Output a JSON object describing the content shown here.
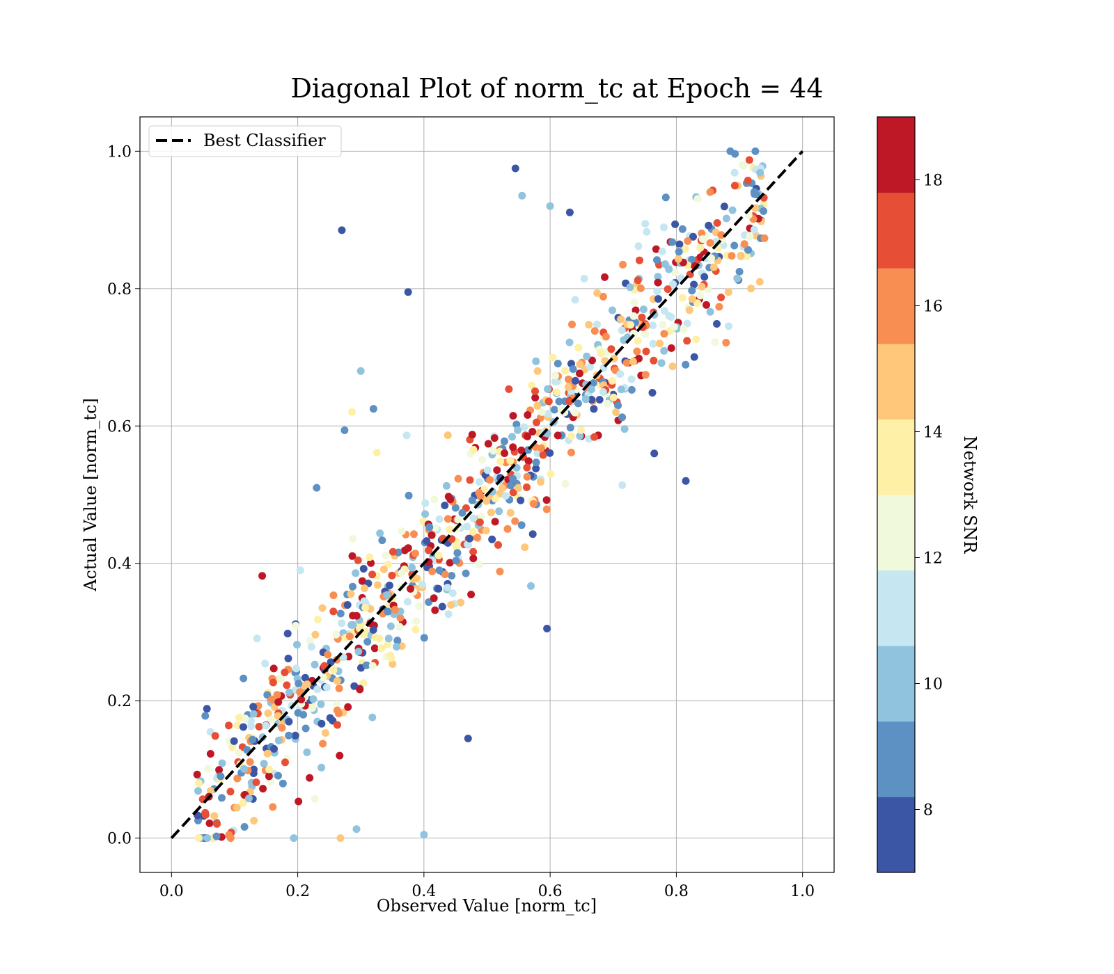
{
  "chart_data": {
    "type": "scatter",
    "title": "Diagonal Plot of norm_tc at Epoch = 44",
    "xlabel": "Observed Value [norm_tc]",
    "ylabel": "Actual Value [norm_tc]",
    "xlim": [
      -0.05,
      1.05
    ],
    "ylim": [
      -0.05,
      1.05
    ],
    "xticks": [
      "0.0",
      "0.2",
      "0.4",
      "0.6",
      "0.8",
      "1.0"
    ],
    "yticks": [
      "0.0",
      "0.2",
      "0.4",
      "0.6",
      "0.8",
      "1.0"
    ],
    "grid": true,
    "legend": {
      "position": "top-left",
      "entries": [
        "Best Classifier"
      ]
    },
    "reference_line": {
      "label": "Best Classifier",
      "x": [
        0,
        1
      ],
      "y": [
        0,
        1
      ],
      "style": "dashed",
      "color": "#000000"
    },
    "colorbar": {
      "label": "Network SNR",
      "range": [
        7,
        19
      ],
      "ticks": [
        "8",
        "10",
        "12",
        "14",
        "16",
        "18"
      ],
      "colormap": [
        "#313695",
        "#4575b4",
        "#74add1",
        "#abd9e9",
        "#e0f3f8",
        "#ffffbf",
        "#fee090",
        "#fdae61",
        "#f46d43",
        "#d73027",
        "#a50026"
      ],
      "bins": 10
    },
    "highlighted_points": [
      {
        "x": 0.27,
        "y": 0.885,
        "snr": 7.5
      },
      {
        "x": 0.375,
        "y": 0.795,
        "snr": 7.5
      },
      {
        "x": 0.545,
        "y": 0.975,
        "snr": 7.5
      },
      {
        "x": 0.6,
        "y": 0.92,
        "snr": 9.5
      },
      {
        "x": 0.3,
        "y": 0.68,
        "snr": 10.5
      },
      {
        "x": 0.595,
        "y": 0.305,
        "snr": 7.5
      },
      {
        "x": 0.4,
        "y": 0.005,
        "snr": 9.5
      },
      {
        "x": 0.815,
        "y": 0.52,
        "snr": 7.5
      },
      {
        "x": 0.765,
        "y": 0.56,
        "snr": 7.5
      },
      {
        "x": 0.47,
        "y": 0.145,
        "snr": 7.5
      },
      {
        "x": 0.23,
        "y": 0.51,
        "snr": 8.5
      },
      {
        "x": 0.32,
        "y": 0.625,
        "snr": 8.5
      }
    ],
    "bulk_scatter": {
      "description": "About 1000 additional points scattered around y = x; estimated, not individually readable",
      "count_estimate": 1000,
      "pattern": "y ≈ x with spread ~0.06, clipped to [0, 1]",
      "snr_range": [
        7,
        19
      ]
    }
  }
}
